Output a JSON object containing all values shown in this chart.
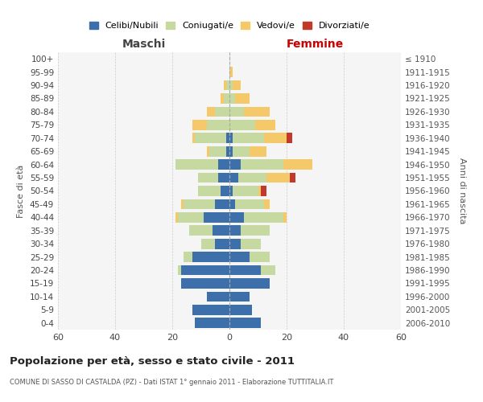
{
  "age_groups": [
    "100+",
    "95-99",
    "90-94",
    "85-89",
    "80-84",
    "75-79",
    "70-74",
    "65-69",
    "60-64",
    "55-59",
    "50-54",
    "45-49",
    "40-44",
    "35-39",
    "30-34",
    "25-29",
    "20-24",
    "15-19",
    "10-14",
    "5-9",
    "0-4"
  ],
  "birth_years": [
    "≤ 1910",
    "1911-1915",
    "1916-1920",
    "1921-1925",
    "1926-1930",
    "1931-1935",
    "1936-1940",
    "1941-1945",
    "1946-1950",
    "1951-1955",
    "1956-1960",
    "1961-1965",
    "1966-1970",
    "1971-1975",
    "1976-1980",
    "1981-1985",
    "1986-1990",
    "1991-1995",
    "1996-2000",
    "2001-2005",
    "2006-2010"
  ],
  "maschi_celibi": [
    0,
    0,
    0,
    0,
    0,
    0,
    1,
    1,
    4,
    4,
    3,
    5,
    9,
    6,
    5,
    13,
    17,
    17,
    8,
    13,
    12
  ],
  "maschi_coniugati": [
    0,
    0,
    1,
    2,
    5,
    8,
    11,
    6,
    15,
    7,
    8,
    11,
    9,
    8,
    5,
    3,
    1,
    0,
    0,
    0,
    0
  ],
  "maschi_vedovi": [
    0,
    0,
    1,
    1,
    3,
    5,
    1,
    1,
    0,
    0,
    0,
    1,
    1,
    0,
    0,
    0,
    0,
    0,
    0,
    0,
    0
  ],
  "maschi_divorziati": [
    0,
    0,
    0,
    0,
    0,
    0,
    0,
    0,
    0,
    0,
    0,
    0,
    0,
    0,
    0,
    0,
    0,
    0,
    0,
    0,
    0
  ],
  "femmine_nubili": [
    0,
    0,
    0,
    0,
    0,
    0,
    1,
    1,
    4,
    3,
    1,
    2,
    5,
    4,
    4,
    7,
    11,
    14,
    7,
    8,
    11
  ],
  "femmine_coniugate": [
    0,
    0,
    1,
    2,
    5,
    9,
    11,
    6,
    15,
    10,
    9,
    10,
    14,
    10,
    7,
    7,
    5,
    0,
    0,
    0,
    0
  ],
  "femmine_vedove": [
    0,
    1,
    3,
    5,
    9,
    7,
    8,
    6,
    10,
    8,
    1,
    2,
    1,
    0,
    0,
    0,
    0,
    0,
    0,
    0,
    0
  ],
  "femmine_divorziate": [
    0,
    0,
    0,
    0,
    0,
    0,
    2,
    0,
    0,
    2,
    2,
    0,
    0,
    0,
    0,
    0,
    0,
    0,
    0,
    0,
    0
  ],
  "color_celibi": "#3d70aa",
  "color_coniugati": "#c5d9a0",
  "color_vedovi": "#f5c96a",
  "color_divorziati": "#c0392b",
  "title": "Popolazione per età, sesso e stato civile - 2011",
  "subtitle": "COMUNE DI SASSO DI CASTALDA (PZ) - Dati ISTAT 1° gennaio 2011 - Elaborazione TUTTITALIA.IT",
  "label_maschi": "Maschi",
  "label_femmine": "Femmine",
  "label_fasce": "Fasce di età",
  "label_anni": "Anni di nascita",
  "legend_labels": [
    "Celibi/Nubili",
    "Coniugati/e",
    "Vedovi/e",
    "Divorziati/e"
  ],
  "xlim": 60,
  "bg_color": "#ffffff",
  "plot_bg": "#f5f5f5",
  "grid_color": "#cccccc"
}
